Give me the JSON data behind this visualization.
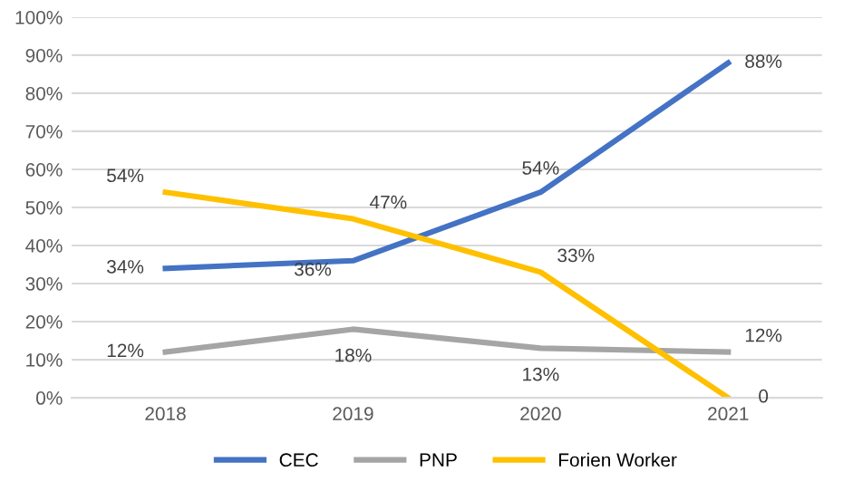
{
  "chart_data": {
    "type": "line",
    "categories": [
      "2018",
      "2019",
      "2020",
      "2021"
    ],
    "series": [
      {
        "name": "CEC",
        "color": "#4472c4",
        "values": [
          34,
          36,
          54,
          88
        ],
        "value_labels": [
          "34%",
          "36%",
          "54%",
          "88%"
        ]
      },
      {
        "name": "PNP",
        "color": "#a5a5a5",
        "values": [
          12,
          18,
          13,
          12
        ],
        "value_labels": [
          "12%",
          "18%",
          "13%",
          "12%"
        ]
      },
      {
        "name": "Forien Worker",
        "color": "#ffc000",
        "values": [
          54,
          47,
          33,
          0
        ],
        "value_labels": [
          "54%",
          "47%",
          "33%",
          "0"
        ]
      }
    ],
    "ylim": [
      0,
      100
    ],
    "yticks": [
      {
        "value": 0,
        "label": "0%"
      },
      {
        "value": 10,
        "label": "10%"
      },
      {
        "value": 20,
        "label": "20%"
      },
      {
        "value": 30,
        "label": "30%"
      },
      {
        "value": 40,
        "label": "40%"
      },
      {
        "value": 50,
        "label": "50%"
      },
      {
        "value": 60,
        "label": "60%"
      },
      {
        "value": 70,
        "label": "70%"
      },
      {
        "value": 80,
        "label": "80%"
      },
      {
        "value": 90,
        "label": "90%"
      },
      {
        "value": 100,
        "label": "100%"
      }
    ],
    "grid": "y",
    "legend": "bottom",
    "marker": "none",
    "line_style": "solid"
  }
}
